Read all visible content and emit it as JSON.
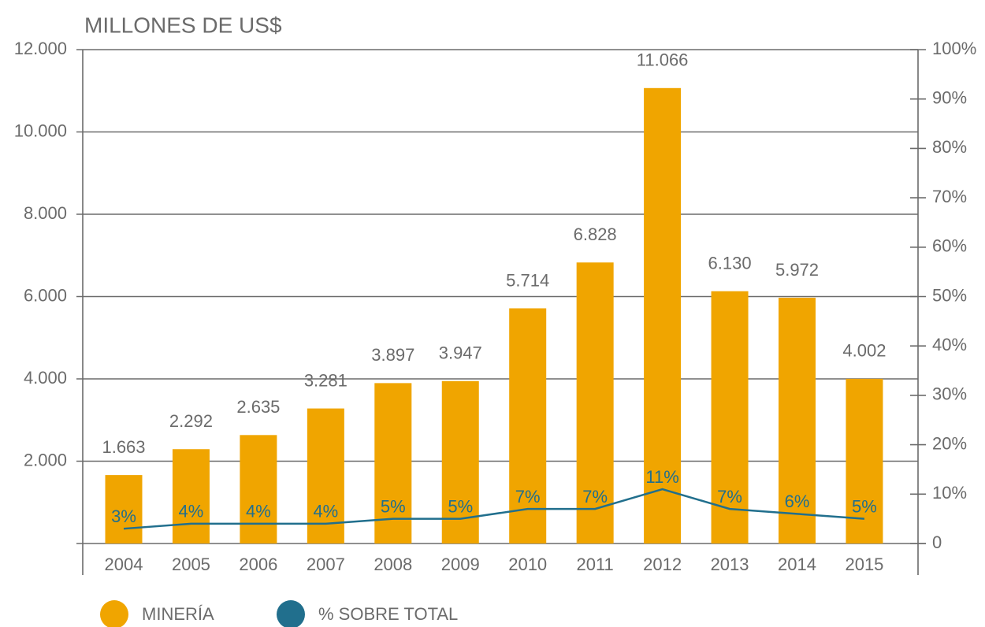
{
  "chart_data": {
    "type": "bar",
    "title": "MILLONES DE US$",
    "categories": [
      "2004",
      "2005",
      "2006",
      "2007",
      "2008",
      "2009",
      "2010",
      "2011",
      "2012",
      "2013",
      "2014",
      "2015"
    ],
    "series": [
      {
        "name": "MINERÍA",
        "type": "bar",
        "color": "#f0a500",
        "values": [
          1663,
          2292,
          2635,
          3281,
          3897,
          3947,
          5714,
          6828,
          11066,
          6130,
          5972,
          4002
        ],
        "value_labels": [
          "1.663",
          "2.292",
          "2.635",
          "3.281",
          "3.897",
          "3.947",
          "5.714",
          "6.828",
          "11.066",
          "6.130",
          "5.972",
          "4.002"
        ]
      },
      {
        "name": "% SOBRE TOTAL",
        "type": "line",
        "axis": "y2",
        "color": "#216f8d",
        "values": [
          3,
          4,
          4,
          4,
          5,
          5,
          7,
          7,
          11,
          7,
          6,
          5
        ],
        "value_labels": [
          "3%",
          "4%",
          "4%",
          "4%",
          "5%",
          "5%",
          "7%",
          "7%",
          "11%",
          "7%",
          "6%",
          "5%"
        ]
      }
    ],
    "ylim": [
      0,
      12000
    ],
    "yticks": [
      {
        "value": 2000,
        "label": "2.000"
      },
      {
        "value": 4000,
        "label": "4.000"
      },
      {
        "value": 6000,
        "label": "6.000"
      },
      {
        "value": 8000,
        "label": "8.000"
      },
      {
        "value": 10000,
        "label": "10.000"
      },
      {
        "value": 12000,
        "label": "12.000"
      }
    ],
    "y2lim": [
      0,
      100
    ],
    "y2ticks": [
      0,
      {
        "value": 10,
        "label": "10%"
      },
      {
        "value": 20,
        "label": "20%"
      },
      {
        "value": 30,
        "label": "30%"
      },
      {
        "value": 40,
        "label": "40%"
      },
      {
        "value": 50,
        "label": "50%"
      },
      {
        "value": 60,
        "label": "60%"
      },
      {
        "value": 70,
        "label": "70%"
      },
      {
        "value": 80,
        "label": "80%"
      },
      {
        "value": 90,
        "label": "90%"
      },
      {
        "value": 100,
        "label": "100%"
      }
    ],
    "grid": true
  }
}
